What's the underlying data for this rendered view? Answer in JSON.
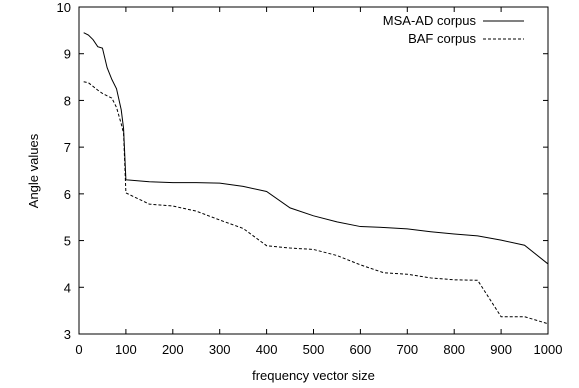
{
  "chart_data": {
    "type": "line",
    "title": "",
    "xlabel": "frequency vector size",
    "ylabel": "Angle values",
    "xlim": [
      0,
      1000
    ],
    "ylim": [
      3,
      10
    ],
    "xticks": [
      "0",
      "100",
      "200",
      "300",
      "400",
      "500",
      "600",
      "700",
      "800",
      "900",
      "1000"
    ],
    "yticks": [
      "3",
      "4",
      "5",
      "6",
      "7",
      "8",
      "9",
      "10"
    ],
    "grid": false,
    "legend": "top-right",
    "series": [
      {
        "name": "MSA-AD corpus",
        "style": "solid",
        "color": "#000000",
        "x": [
          10,
          20,
          30,
          40,
          50,
          60,
          70,
          80,
          90,
          95,
          100,
          150,
          200,
          250,
          300,
          350,
          400,
          450,
          500,
          550,
          600,
          650,
          700,
          750,
          800,
          850,
          900,
          950,
          1000
        ],
        "y": [
          9.45,
          9.4,
          9.3,
          9.15,
          9.12,
          8.7,
          8.45,
          8.25,
          7.8,
          7.4,
          6.3,
          6.26,
          6.24,
          6.24,
          6.23,
          6.16,
          6.05,
          5.7,
          5.53,
          5.4,
          5.3,
          5.28,
          5.25,
          5.19,
          5.14,
          5.1,
          5.01,
          4.9,
          4.5
        ]
      },
      {
        "name": "BAF corpus",
        "style": "dashed",
        "color": "#000000",
        "x": [
          10,
          20,
          30,
          40,
          50,
          60,
          70,
          80,
          90,
          95,
          100,
          150,
          200,
          250,
          300,
          350,
          400,
          450,
          500,
          550,
          600,
          650,
          700,
          750,
          800,
          850,
          900,
          950,
          1000
        ],
        "y": [
          8.4,
          8.38,
          8.3,
          8.22,
          8.15,
          8.1,
          8.05,
          7.85,
          7.5,
          7.3,
          6.02,
          5.78,
          5.74,
          5.63,
          5.44,
          5.26,
          4.89,
          4.84,
          4.81,
          4.68,
          4.48,
          4.31,
          4.28,
          4.2,
          4.16,
          4.15,
          3.37,
          3.37,
          3.22
        ]
      }
    ]
  }
}
